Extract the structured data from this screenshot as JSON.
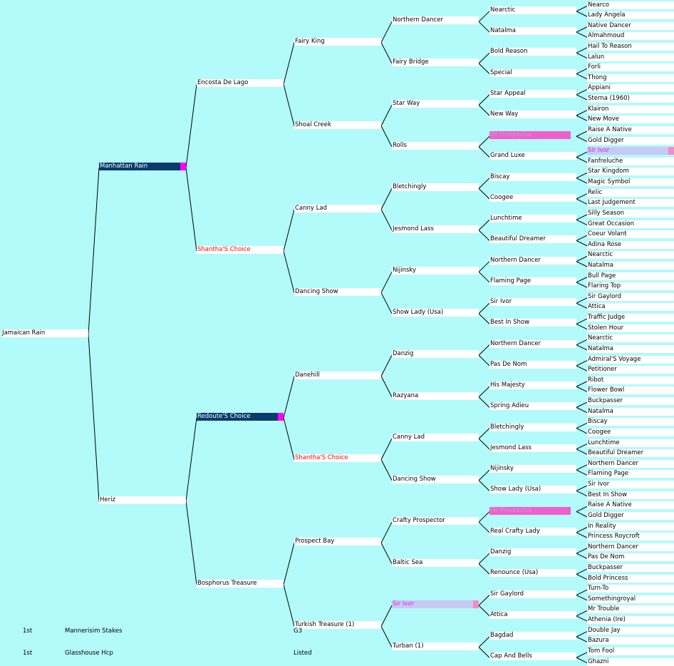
{
  "horse": "Jamaican Rain",
  "g1": [
    "Manhattan Rain",
    "Heriz"
  ],
  "g2": [
    "Encosta De Lago",
    "Shantha'S Choice",
    "Redoute'S Choice",
    "Bosphorus Treasure"
  ],
  "g3": [
    "Fairy King",
    "Shoal Creek",
    "Canny Lad",
    "Dancing Show",
    "Danehill",
    "Shantha'S Choice",
    "Prospect Bay",
    "Turkish Treasure (1)"
  ],
  "g4": [
    "Northern Dancer",
    "Fairy Bridge",
    "Star Way",
    "Rolls",
    "Bletchingly",
    "Jesmond Lass",
    "Nijinsky",
    "Show Lady (Usa)",
    "Danzig",
    "Razyana",
    "Canny Lad",
    "Dancing Show",
    "Crafty Prospector",
    "Baltic Sea",
    "Sir Ivor",
    "Turban (1)"
  ],
  "g5": [
    "Nearctic",
    "Natalma",
    "Bold Reason",
    "Special",
    "Star Appeal",
    "New Way",
    "Mr Prospector",
    "Grand Luxe",
    "Biscay",
    "Coogee",
    "Lunchtime",
    "Beautiful Dreamer",
    "Northern Dancer",
    "Flaming Page",
    "Sir Ivor",
    "Best In Show",
    "Northern Dancer",
    "Pas De Nom",
    "His Majesty",
    "Spring Adieu",
    "Bletchingly",
    "Jesmond Lass",
    "Nijinsky",
    "Show Lady (Usa)",
    "Mr Prospector",
    "Real Crafty Lady",
    "Danzig",
    "Renounce (Usa)",
    "Sir Gaylord",
    "Attica",
    "Bagdad",
    "Cap And Bells"
  ],
  "g6": [
    "Nearco",
    "Lady Angela",
    "Native Dancer",
    "Almahmoud",
    "Hail To Reason",
    "Lalun",
    "Forli",
    "Thong",
    "Appiani",
    "Sterna (1960)",
    "Klairon",
    "New Move",
    "Raise A Native",
    "Gold Digger",
    "Sir Ivor",
    "Fanfreluche",
    "Star Kingdom",
    "Magic Symbol",
    "Relic",
    "Last Judgement",
    "Silly Season",
    "Great Occasion",
    "Coeur Volant",
    "Adina Rose",
    "Nearctic",
    "Natalma",
    "Bull Page",
    "Flaring Top",
    "Sir Gaylord",
    "Attica",
    "Traffic Judge",
    "Stolen Hour",
    "Nearctic",
    "Natalma",
    "Admiral'S Voyage",
    "Petitioner",
    "Ribot",
    "Flower Bowl",
    "Buckpasser",
    "Natalma",
    "Biscay",
    "Coogee",
    "Lunchtime",
    "Beautiful Dreamer",
    "Northern Dancer",
    "Flaming Page",
    "Sir Ivor",
    "Best In Show",
    "Raise A Native",
    "Gold Digger",
    "In Reality",
    "Princess Roycroft",
    "Northern Dancer",
    "Pas De Nom",
    "Buckpasser",
    "Bold Princess",
    "Turn-To",
    "Somethingroyal",
    "Mr Trouble",
    "Athenia (Ire)",
    "Double Jay",
    "Bazura",
    "Tom Fool",
    "Ghazni"
  ],
  "highlights": {
    "dark": [
      "1-0",
      "2-2"
    ],
    "red": [
      "2-1",
      "3-5"
    ],
    "pink": [
      "5-6",
      "5-24"
    ],
    "lavender": [
      "6-14",
      "4-14"
    ],
    "dark_tag_color": "#ff00ff",
    "lav_tag_color": "#f08cc8"
  },
  "results": [
    {
      "place": "1st",
      "race": "Mannerisim Stakes",
      "grade": "G3"
    },
    {
      "place": "1st",
      "race": "Glasshouse Hcp",
      "grade": "Listed"
    }
  ]
}
